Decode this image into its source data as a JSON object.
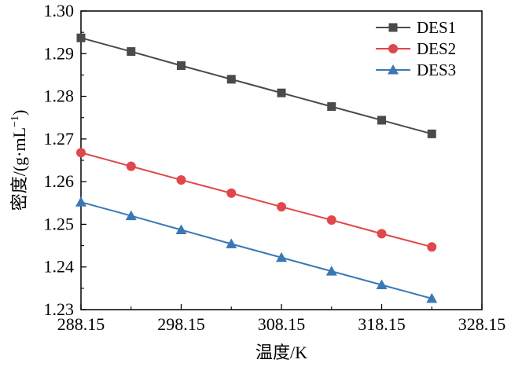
{
  "chart_data": {
    "type": "line",
    "xlabel": "温度/K",
    "ylabel_main": "密度/(g·mL",
    "ylabel_sup": "−1",
    "ylabel_close": ")",
    "xlim": [
      288.15,
      328.15
    ],
    "ylim": [
      1.23,
      1.3
    ],
    "xticks": [
      288.15,
      298.15,
      308.15,
      318.15,
      328.15
    ],
    "xtick_labels": [
      "288.15",
      "298.15",
      "308.15",
      "318.15",
      "328.15"
    ],
    "yticks": [
      1.23,
      1.24,
      1.25,
      1.26,
      1.27,
      1.28,
      1.29,
      1.3
    ],
    "ytick_labels": [
      "1.23",
      "1.24",
      "1.25",
      "1.26",
      "1.27",
      "1.28",
      "1.29",
      "1.30"
    ],
    "grid": false,
    "legend_position": "top-right",
    "x": [
      288.15,
      293.15,
      298.15,
      303.15,
      308.15,
      313.15,
      318.15,
      323.15
    ],
    "series": [
      {
        "name": "DES1",
        "color": "#4a4a4a",
        "marker": "square",
        "values": [
          1.2937,
          1.2905,
          1.2872,
          1.284,
          1.2808,
          1.2776,
          1.2744,
          1.2712
        ]
      },
      {
        "name": "DES2",
        "color": "#e0474c",
        "marker": "circle",
        "values": [
          1.2668,
          1.2636,
          1.2604,
          1.2573,
          1.2541,
          1.251,
          1.2478,
          1.2447
        ]
      },
      {
        "name": "DES3",
        "color": "#3a78b5",
        "marker": "triangle",
        "values": [
          1.2552,
          1.252,
          1.2487,
          1.2454,
          1.2422,
          1.239,
          1.2358,
          1.2326
        ]
      }
    ]
  }
}
